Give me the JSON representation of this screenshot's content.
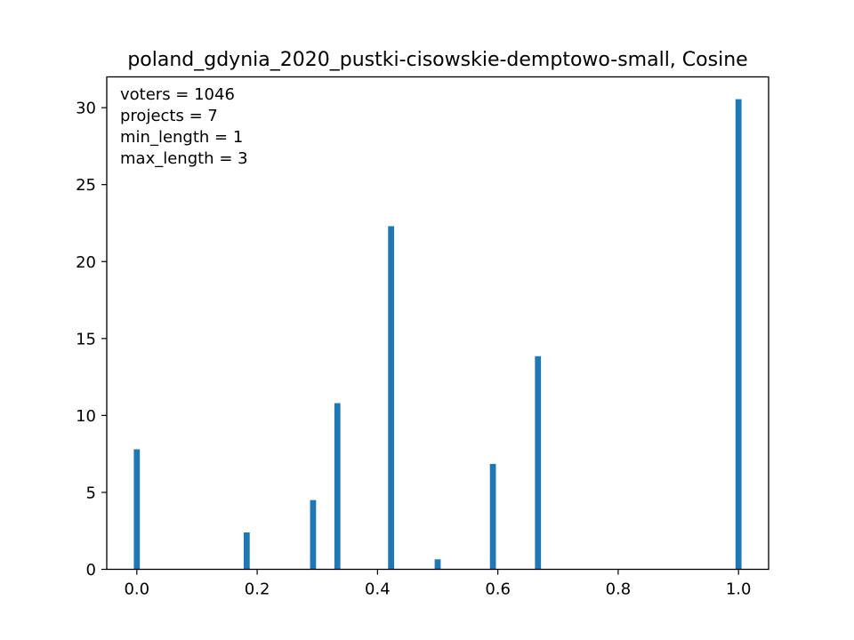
{
  "chart_data": {
    "type": "bar",
    "title": "poland_gdynia_2020_pustki-cisowskie-demptowo-small, Cosine",
    "xlabel": "",
    "ylabel": "",
    "xlim": [
      -0.05,
      1.05
    ],
    "ylim": [
      0,
      32
    ],
    "grid": false,
    "bar_color": "#1f77b4",
    "bar_width": 0.01,
    "x": [
      0.0,
      0.1826,
      0.2929,
      0.3333,
      0.4226,
      0.5,
      0.5918,
      0.6667,
      1.0
    ],
    "values": [
      7.8,
      2.4,
      4.5,
      10.8,
      22.3,
      0.65,
      6.85,
      13.85,
      30.55
    ],
    "xticks": [
      "0.0",
      "0.2",
      "0.4",
      "0.6",
      "0.8",
      "1.0"
    ],
    "yticks": [
      "0",
      "5",
      "10",
      "15",
      "20",
      "25",
      "30"
    ],
    "annotations": [
      "voters = 1046",
      "projects = 7",
      "min_length = 1",
      "max_length = 3"
    ]
  }
}
